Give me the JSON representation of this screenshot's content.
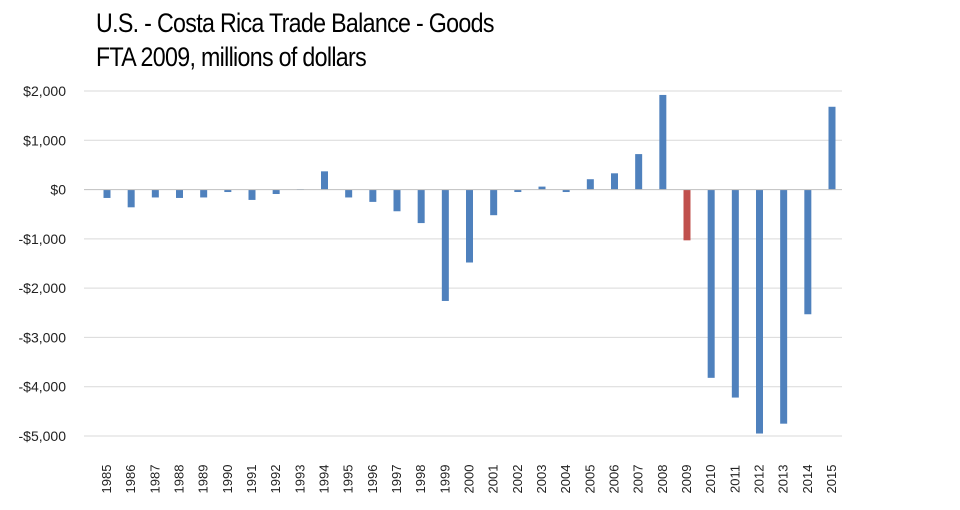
{
  "chart_data": {
    "type": "bar",
    "title": "U.S. - Costa Rica Trade Balance - Goods",
    "subtitle": "FTA  2009, millions of dollars",
    "xlabel": "",
    "ylabel": "",
    "ylim": [
      -5000,
      2000
    ],
    "yticks": [
      2000,
      1000,
      0,
      -1000,
      -2000,
      -3000,
      -4000,
      -5000
    ],
    "ytick_labels": [
      "$2,000",
      "$1,000",
      "$0",
      "-$1,000",
      "-$2,000",
      "-$3,000",
      "-$4,000",
      "-$5,000"
    ],
    "grid": true,
    "categories": [
      "1985",
      "1986",
      "1987",
      "1988",
      "1989",
      "1990",
      "1991",
      "1992",
      "1993",
      "1994",
      "1995",
      "1996",
      "1997",
      "1998",
      "1999",
      "2000",
      "2001",
      "2002",
      "2003",
      "2004",
      "2005",
      "2006",
      "2007",
      "2008",
      "2009",
      "2010",
      "2011",
      "2012",
      "2013",
      "2014",
      "2015"
    ],
    "values": [
      -170,
      -360,
      -160,
      -170,
      -160,
      -50,
      -210,
      -90,
      10,
      370,
      -160,
      -250,
      -440,
      -680,
      -2260,
      -1480,
      -520,
      -50,
      60,
      -50,
      210,
      330,
      720,
      1920,
      -1030,
      -3820,
      -4220,
      -4950,
      -4750,
      -2530,
      1680
    ],
    "highlight_category": "2009",
    "colors": {
      "bar": "#4f81bd",
      "highlight": "#c0504d",
      "grid": "#d9d9d9",
      "axis": "#bfbfbf"
    }
  }
}
